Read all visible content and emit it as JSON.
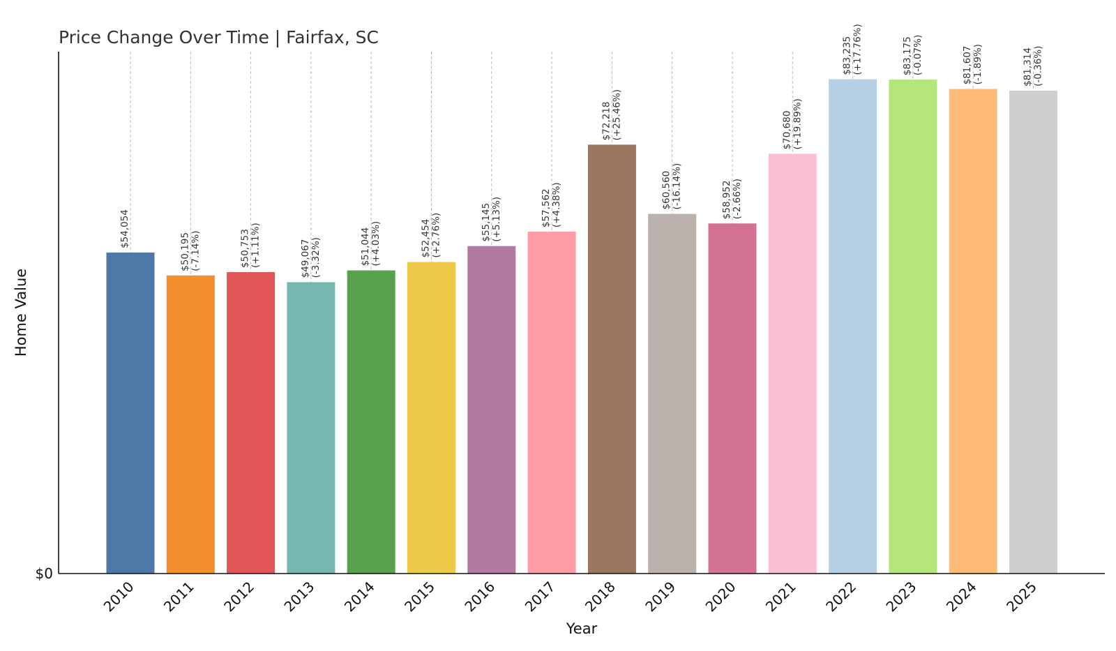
{
  "chart_data": {
    "type": "bar",
    "title": "Price Change Over Time | Fairfax, SC",
    "xlabel": "Year",
    "ylabel": "Home Value",
    "y_tick_label": "$0",
    "ylim": [
      0,
      88000
    ],
    "grid": "vertical-dashed",
    "categories": [
      "2010",
      "2011",
      "2012",
      "2013",
      "2014",
      "2015",
      "2016",
      "2017",
      "2018",
      "2019",
      "2020",
      "2021",
      "2022",
      "2023",
      "2024",
      "2025"
    ],
    "values": [
      54054,
      50195,
      50753,
      49067,
      51044,
      52454,
      55145,
      57562,
      72218,
      60560,
      58952,
      70680,
      83235,
      83175,
      81607,
      81314
    ],
    "value_labels": [
      "$54,054",
      "$50,195",
      "$50,753",
      "$49,067",
      "$51,044",
      "$52,454",
      "$55,145",
      "$57,562",
      "$72,218",
      "$60,560",
      "$58,952",
      "$70,680",
      "$83,235",
      "$83,175",
      "$81,607",
      "$81,314"
    ],
    "change_labels": [
      "",
      "(-7.14%)",
      "(+1.11%)",
      "(-3.32%)",
      "(+4.03%)",
      "(+2.76%)",
      "(+5.13%)",
      "(+4.38%)",
      "(+25.46%)",
      "(-16.14%)",
      "(-2.66%)",
      "(+19.89%)",
      "(+17.76%)",
      "(-0.07%)",
      "(-1.89%)",
      "(-0.36%)"
    ],
    "colors": [
      "#4e79a7",
      "#f28e2b",
      "#e15759",
      "#76b7b2",
      "#59a14f",
      "#edc948",
      "#b07aa1",
      "#ff9da7",
      "#9c755f",
      "#bab0ac",
      "#d37295",
      "#fabfd2",
      "#b6cfe4",
      "#b5e67c",
      "#ffbb78",
      "#cfcfcf"
    ]
  }
}
